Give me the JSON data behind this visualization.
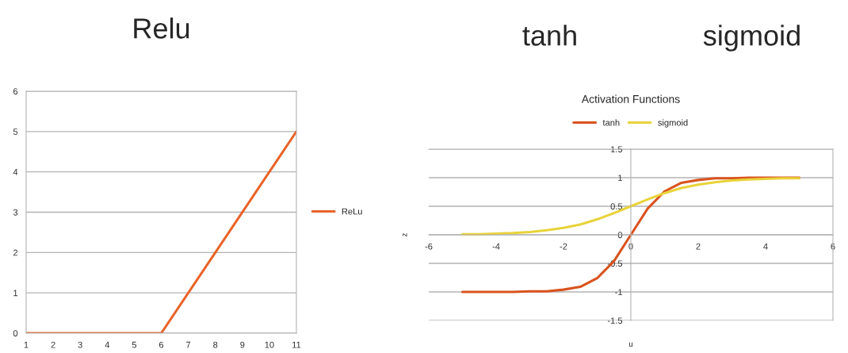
{
  "chart_data": [
    {
      "type": "line",
      "title": "Relu",
      "x": [
        1,
        6,
        11
      ],
      "series": [
        {
          "name": "ReLu",
          "color": "#e8642a",
          "values": [
            0,
            0,
            5
          ]
        }
      ],
      "xlim": [
        1,
        11
      ],
      "xticks": [
        1,
        2,
        3,
        4,
        5,
        6,
        7,
        8,
        9,
        10,
        11
      ],
      "ylim": [
        0,
        6
      ],
      "yticks": [
        0,
        1,
        2,
        3,
        4,
        5,
        6
      ],
      "grid": "y",
      "legend": "right",
      "marker": "none",
      "line_style": "solid"
    },
    {
      "type": "line",
      "title": "Activation Functions",
      "annotations": [
        "tanh",
        "sigmoid"
      ],
      "xlabel": "u",
      "ylabel": "z",
      "x": [
        -5,
        -4.5,
        -4,
        -3.5,
        -3,
        -2.5,
        -2,
        -1.5,
        -1,
        -0.5,
        0,
        0.5,
        1,
        1.5,
        2,
        2.5,
        3,
        3.5,
        4,
        4.5,
        5
      ],
      "series": [
        {
          "name": "tanh",
          "color": "#d9531e",
          "values": [
            -1,
            -1,
            -1,
            -1,
            -0.99,
            -0.99,
            -0.96,
            -0.91,
            -0.76,
            -0.46,
            0,
            0.46,
            0.76,
            0.91,
            0.96,
            0.99,
            0.99,
            1,
            1,
            1,
            1
          ]
        },
        {
          "name": "sigmoid",
          "color": "#e8d33a",
          "values": [
            0.01,
            0.01,
            0.02,
            0.03,
            0.05,
            0.08,
            0.12,
            0.18,
            0.27,
            0.38,
            0.5,
            0.62,
            0.73,
            0.82,
            0.88,
            0.92,
            0.95,
            0.97,
            0.98,
            0.99,
            0.99
          ]
        }
      ],
      "xlim": [
        -6,
        6
      ],
      "xticks": [
        -6,
        -4,
        -2,
        0,
        2,
        4,
        6
      ],
      "ylim": [
        -1.5,
        1.5
      ],
      "yticks": [
        -1.5,
        -1,
        -0.5,
        0,
        0.5,
        1,
        1.5
      ],
      "grid": "y",
      "legend": "top",
      "marker": "none",
      "line_style": "solid"
    }
  ]
}
